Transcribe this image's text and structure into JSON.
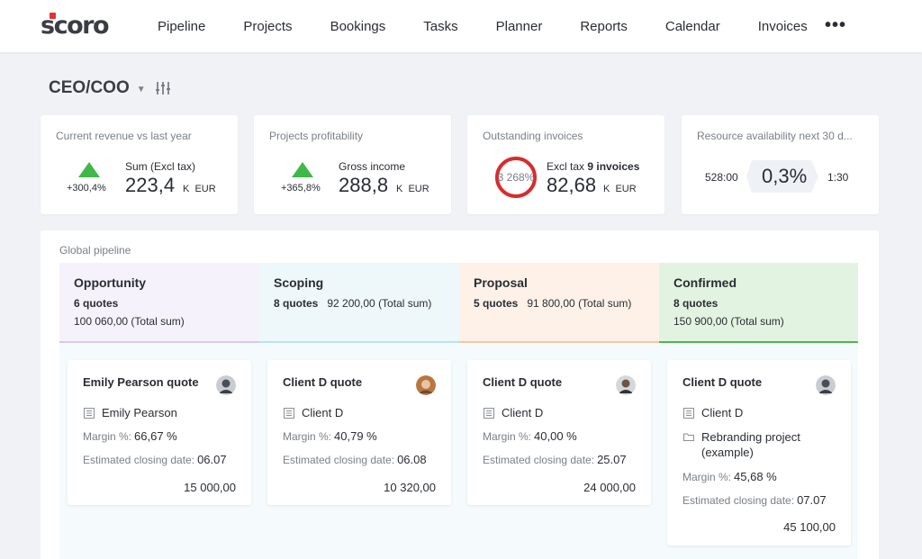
{
  "brand": {
    "name": "scoro",
    "accent": "#e3342f"
  },
  "nav": {
    "items": [
      "Pipeline",
      "Projects",
      "Bookings",
      "Tasks",
      "Planner",
      "Reports",
      "Calendar",
      "Invoices"
    ],
    "more_icon": "more-horizontal-icon"
  },
  "dashboard": {
    "title": "CEO/COO",
    "caret_icon": "caret-down-icon",
    "filter_icon": "sliders-icon"
  },
  "kpis": [
    {
      "title": "Current revenue vs last year",
      "trend": "up",
      "trend_color": "#3fb849",
      "change": "+300,4%",
      "label": "Sum (Excl tax)",
      "value": "223,4",
      "unit_k": "K",
      "currency": "EUR"
    },
    {
      "title": "Projects profitability",
      "trend": "up",
      "trend_color": "#3fb849",
      "change": "+365,8%",
      "label": "Gross income",
      "value": "288,8",
      "unit_k": "K",
      "currency": "EUR"
    },
    {
      "title": "Outstanding invoices",
      "ring_label": "3 268%",
      "ring_color": "#d62d2d",
      "label_prefix": "Excl tax",
      "label_bold": "9 invoices",
      "value": "82,68",
      "unit_k": "K",
      "currency": "EUR"
    },
    {
      "title": "Resource availability next 30 d...",
      "left": "528:00",
      "value": "0,3%",
      "right": "1:30"
    }
  ],
  "pipeline": {
    "title": "Global pipeline",
    "columns": [
      {
        "name": "Opportunity",
        "quotes": "6 quotes",
        "total": "100 060,00 (Total sum)",
        "bg": "#f6f2fb",
        "line": "#d9c8ea"
      },
      {
        "name": "Scoping",
        "quotes": "8 quotes",
        "total": "92 200,00 (Total sum)",
        "bg": "#eef7fa",
        "line": "#b8e4ee"
      },
      {
        "name": "Proposal",
        "quotes": "5 quotes",
        "total": "91 800,00 (Total sum)",
        "bg": "#fdf1e8",
        "line": "#f3c9a1"
      },
      {
        "name": "Confirmed",
        "quotes": "8 quotes",
        "total": "150 900,00 (Total sum)",
        "bg": "#e3f3e2",
        "line": "#4cb84f"
      }
    ],
    "cards": [
      {
        "title": "Emily Pearson quote",
        "client": "Emily Pearson",
        "margin_label": "Margin %:",
        "margin": "66,67 %",
        "closing_label": "Estimated closing date:",
        "closing": "06.07",
        "amount": "15 000,00"
      },
      {
        "title": "Client D quote",
        "client": "Client D",
        "margin_label": "Margin %:",
        "margin": "40,79 %",
        "closing_label": "Estimated closing date:",
        "closing": "06.08",
        "amount": "10 320,00"
      },
      {
        "title": "Client D quote",
        "client": "Client D",
        "margin_label": "Margin %:",
        "margin": "40,00 %",
        "closing_label": "Estimated closing date:",
        "closing": "25.07",
        "amount": "24 000,00"
      },
      {
        "title": "Client D quote",
        "client": "Client D",
        "project_line1": "Rebranding project",
        "project_line2": "(example)",
        "margin_label": "Margin %:",
        "margin": "45,68 %",
        "closing_label": "Estimated closing date:",
        "closing": "07.07",
        "amount": "45 100,00"
      }
    ]
  }
}
